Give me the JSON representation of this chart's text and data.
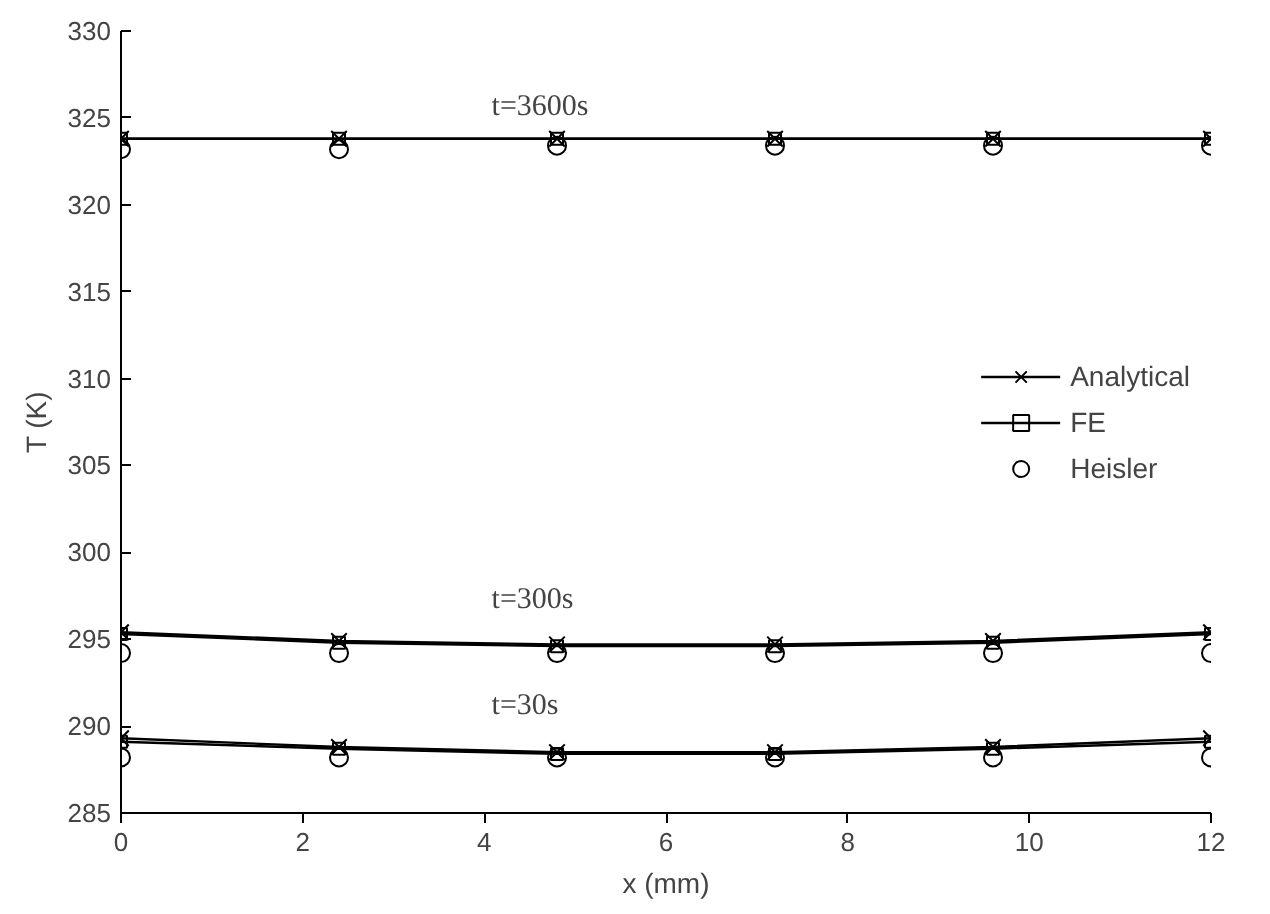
{
  "chart_data": {
    "type": "line",
    "xlabel": "x (mm)",
    "ylabel": "T (K)",
    "xlim": [
      0,
      12
    ],
    "ylim": [
      285,
      330
    ],
    "xticks": [
      0,
      2,
      4,
      6,
      8,
      10,
      12
    ],
    "yticks": [
      285,
      290,
      295,
      300,
      305,
      310,
      315,
      320,
      325,
      330
    ],
    "grid": false,
    "legend": "right",
    "annotations": [
      "t=3600s",
      "t=300s",
      "t=30s"
    ],
    "series": [
      {
        "name": "Analytical",
        "marker": "cross",
        "color": "#000000",
        "x": [
          0,
          2.4,
          4.8,
          7.2,
          9.6,
          12
        ],
        "values": [
          323.8,
          323.8,
          323.8,
          323.8,
          323.8,
          323.8
        ]
      },
      {
        "name": "FE",
        "marker": "square",
        "color": "#000000",
        "x": [
          0,
          2.4,
          4.8,
          7.2,
          9.6,
          12
        ],
        "values": [
          323.8,
          323.8,
          323.8,
          323.8,
          323.8,
          323.8
        ]
      },
      {
        "name": "Heisler",
        "type": "scatter",
        "marker": "circle",
        "color": "#000000",
        "x": [
          0,
          2.4,
          4.8,
          7.2,
          9.6,
          12
        ],
        "values": [
          323.2,
          323.2,
          323.4,
          323.4,
          323.4,
          323.4
        ]
      },
      {
        "marker": "cross",
        "color": "#000000",
        "x": [
          0,
          2.4,
          4.8,
          7.2,
          9.6,
          12
        ],
        "values": [
          295.4,
          294.9,
          294.7,
          294.7,
          294.9,
          295.4
        ]
      },
      {
        "marker": "square",
        "color": "#000000",
        "x": [
          0,
          2.4,
          4.8,
          7.2,
          9.6,
          12
        ],
        "values": [
          295.3,
          294.8,
          294.6,
          294.6,
          294.8,
          295.3
        ]
      },
      {
        "type": "scatter",
        "marker": "circle",
        "color": "#000000",
        "x": [
          0,
          2.4,
          4.8,
          7.2,
          9.6,
          12
        ],
        "values": [
          294.2,
          294.2,
          294.2,
          294.2,
          294.2,
          294.2
        ]
      },
      {
        "marker": "cross",
        "color": "#000000",
        "x": [
          0,
          2.4,
          4.8,
          7.2,
          9.6,
          12
        ],
        "values": [
          289.3,
          288.8,
          288.5,
          288.5,
          288.8,
          289.3
        ]
      },
      {
        "marker": "square",
        "color": "#000000",
        "x": [
          0,
          2.4,
          4.8,
          7.2,
          9.6,
          12
        ],
        "values": [
          289.1,
          288.7,
          288.4,
          288.4,
          288.7,
          289.1
        ]
      },
      {
        "type": "scatter",
        "marker": "circle",
        "color": "#000000",
        "x": [
          0,
          2.4,
          4.8,
          7.2,
          9.6,
          12
        ],
        "values": [
          288.2,
          288.2,
          288.2,
          288.2,
          288.2,
          288.2
        ]
      }
    ]
  }
}
